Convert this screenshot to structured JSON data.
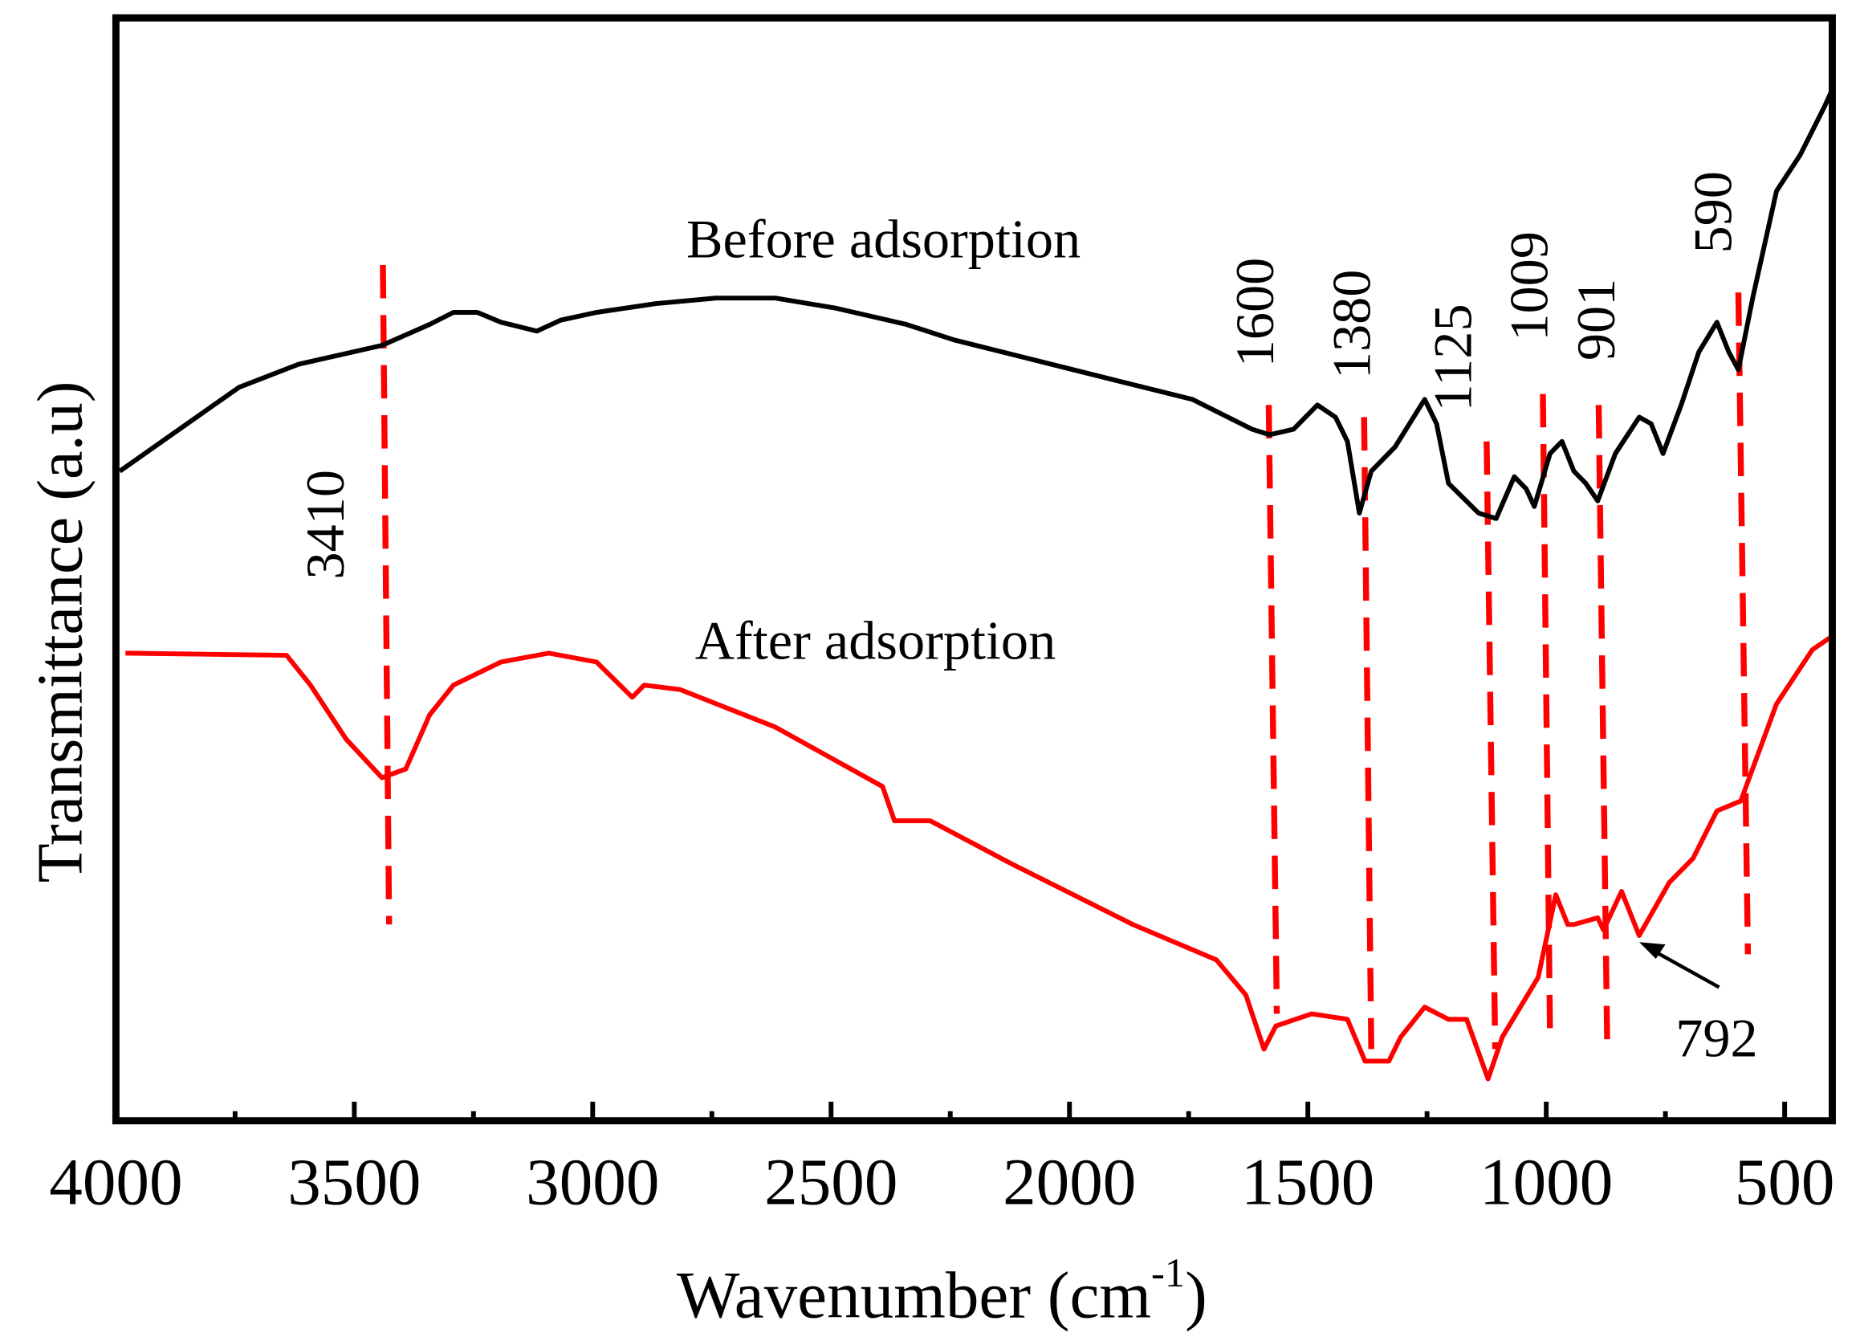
{
  "chart_data": {
    "type": "line",
    "title": "",
    "xlabel": "Wavenumber (cm",
    "xlabel_sup": "-1",
    "xlabel_close": ")",
    "ylabel": "Transmittance (a.u)",
    "xlim": [
      4000,
      400
    ],
    "ylim": [
      0,
      100
    ],
    "x_ticks": [
      4000,
      3500,
      3000,
      2500,
      2000,
      1500,
      1000,
      500
    ],
    "x_tick_labels": [
      "4000",
      "3500",
      "3000",
      "2500",
      "2000",
      "1500",
      "1000",
      "500"
    ],
    "x_minor_ticks": [
      3750,
      3250,
      2750,
      2250,
      1750,
      1250,
      750
    ],
    "grid": false,
    "colors": {
      "before": "#000000",
      "after": "#ff0000",
      "markers": "#ff0000"
    },
    "series": [
      {
        "name": "Before adsorption",
        "color": "#000000",
        "x": [
          3992,
          3867,
          3742,
          3617,
          3442,
          3342,
          3292,
          3242,
          3192,
          3117,
          3067,
          2992,
          2867,
          2742,
          2617,
          2492,
          2342,
          2242,
          1992,
          1742,
          1617,
          1580,
          1530,
          1480,
          1442,
          1417,
          1392,
          1367,
          1317,
          1255,
          1230,
          1205,
          1142,
          1105,
          1067,
          1042,
          1025,
          992,
          967,
          942,
          917,
          892,
          855,
          805,
          780,
          755,
          717,
          680,
          642,
          617,
          597,
          567,
          517,
          467,
          417,
          400
        ],
        "y": [
          58.9,
          62.7,
          66.5,
          68.6,
          70.3,
          72.2,
          73.3,
          73.3,
          72.4,
          71.6,
          72.6,
          73.3,
          74.1,
          74.6,
          74.6,
          73.7,
          72.2,
          70.8,
          68.1,
          65.4,
          62.7,
          62.2,
          62.7,
          64.9,
          63.8,
          61.6,
          55.1,
          58.9,
          61.1,
          65.4,
          63.2,
          57.8,
          55.1,
          54.6,
          58.4,
          57.3,
          55.7,
          60.5,
          61.6,
          58.9,
          57.8,
          56.2,
          60.5,
          63.8,
          63.2,
          60.5,
          64.9,
          69.7,
          72.4,
          69.7,
          68.1,
          74.6,
          84.3,
          87.6,
          91.9,
          93.5
        ]
      },
      {
        "name": "After adsorption",
        "color": "#ff0000",
        "x": [
          3980,
          3642,
          3592,
          3517,
          3442,
          3392,
          3342,
          3292,
          3192,
          3092,
          2992,
          2917,
          2892,
          2817,
          2617,
          2392,
          2367,
          2292,
          2117,
          1867,
          1692,
          1630,
          1592,
          1567,
          1492,
          1417,
          1380,
          1330,
          1305,
          1255,
          1205,
          1167,
          1122,
          1092,
          1017,
          980,
          955,
          942,
          892,
          880,
          842,
          805,
          742,
          692,
          642,
          592,
          517,
          442,
          405
        ],
        "y": [
          42.4,
          42.2,
          39.5,
          34.6,
          31.1,
          31.9,
          36.8,
          39.5,
          41.6,
          42.4,
          41.6,
          38.4,
          39.5,
          39.1,
          35.7,
          30.3,
          27.2,
          27.2,
          23.2,
          17.8,
          14.6,
          11.4,
          6.5,
          8.6,
          9.7,
          9.2,
          5.4,
          5.4,
          7.6,
          10.3,
          9.2,
          9.2,
          3.8,
          7.6,
          13.0,
          20.5,
          17.8,
          17.8,
          18.4,
          17.3,
          20.8,
          16.8,
          21.6,
          23.8,
          28.1,
          29.0,
          37.8,
          42.7,
          43.8
        ]
      }
    ],
    "peak_markers": [
      {
        "label": "3410",
        "x_top": 3440,
        "x_bottom": 3427,
        "y_top": 77.6,
        "y_bottom": 17.8
      },
      {
        "label": "1600",
        "x_top": 1582,
        "x_bottom": 1565,
        "y_top": 64.9,
        "y_bottom": 9.7
      },
      {
        "label": "1380",
        "x_top": 1382,
        "x_bottom": 1367,
        "y_top": 63.8,
        "y_bottom": 6.5
      },
      {
        "label": "1125",
        "x_top": 1125,
        "x_bottom": 1107,
        "y_top": 61.6,
        "y_bottom": 6.5
      },
      {
        "label": "1009",
        "x_top": 1007,
        "x_bottom": 992,
        "y_top": 65.9,
        "y_bottom": 7.6
      },
      {
        "label": "901",
        "x_top": 890,
        "x_bottom": 872,
        "y_top": 64.9,
        "y_bottom": 6.5
      },
      {
        "label": "590",
        "x_top": 597,
        "x_bottom": 577,
        "y_top": 75.1,
        "y_bottom": 15.1
      }
    ],
    "annotations": [
      {
        "text": "Before adsorption",
        "x": 2390,
        "y": 79.9
      },
      {
        "text": "After adsorption",
        "x": 2407,
        "y": 43.5
      },
      {
        "text": "792",
        "points_to_x": 805,
        "points_to_y": 16.2
      }
    ]
  }
}
